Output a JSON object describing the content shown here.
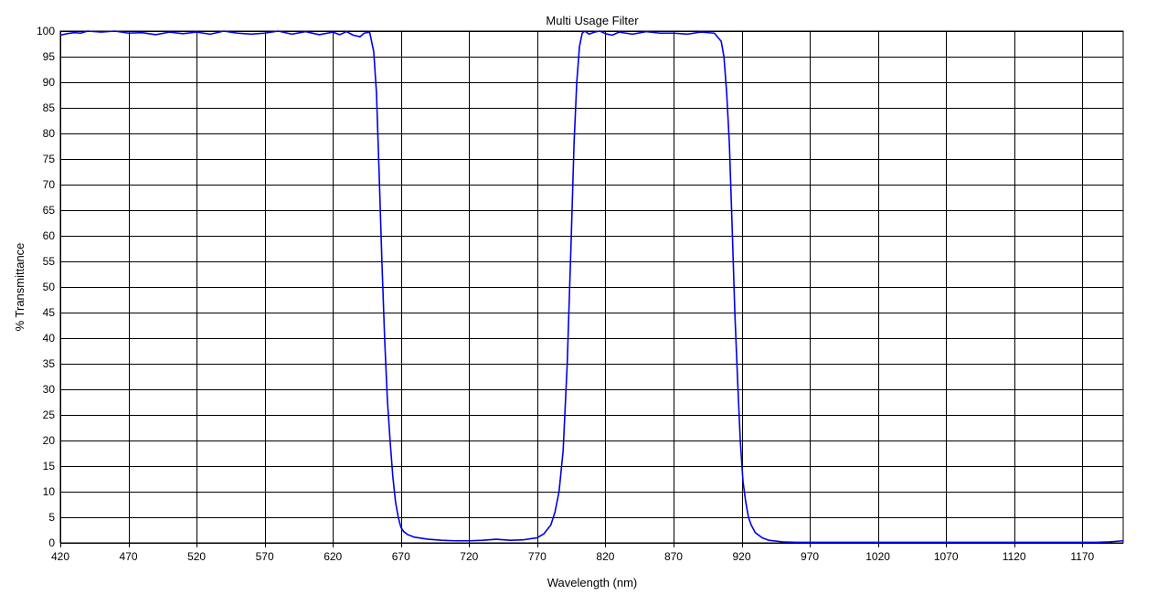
{
  "chart_data": {
    "type": "line",
    "title": "Multi Usage Filter",
    "xlabel": "Wavelength (nm)",
    "ylabel": "% Transmittance",
    "xlim": [
      420,
      1200
    ],
    "ylim": [
      0,
      100
    ],
    "xticks": [
      420,
      470,
      520,
      570,
      620,
      670,
      720,
      770,
      820,
      870,
      920,
      970,
      1020,
      1070,
      1120,
      1170
    ],
    "yticks": [
      0,
      5,
      10,
      15,
      20,
      25,
      30,
      35,
      40,
      45,
      50,
      55,
      60,
      65,
      70,
      75,
      80,
      85,
      90,
      95,
      100
    ],
    "grid": true,
    "line_color": "#0000e6",
    "series": [
      {
        "x": [
          420,
          425,
          430,
          435,
          440,
          450,
          460,
          470,
          480,
          490,
          500,
          510,
          520,
          530,
          540,
          550,
          560,
          570,
          580,
          590,
          600,
          610,
          620,
          625,
          630,
          635,
          640,
          643,
          647,
          650,
          652,
          654,
          656,
          658,
          660,
          662,
          664,
          666,
          668,
          670,
          672,
          675,
          680,
          690,
          700,
          710,
          720,
          730,
          740,
          750,
          760,
          770,
          775,
          780,
          783,
          786,
          789,
          792,
          795,
          797,
          799,
          801,
          803,
          805,
          808,
          812,
          816,
          820,
          825,
          830,
          840,
          850,
          860,
          870,
          880,
          890,
          900,
          905,
          907,
          909,
          911,
          913,
          915,
          917,
          919,
          921,
          923,
          925,
          927,
          930,
          935,
          940,
          950,
          960,
          970,
          1000,
          1050,
          1100,
          1150,
          1180,
          1190,
          1200
        ],
        "y": [
          99.2,
          99.5,
          99.7,
          99.6,
          100,
          99.8,
          100,
          99.6,
          99.7,
          99.3,
          99.8,
          99.5,
          99.8,
          99.4,
          100,
          99.6,
          99.4,
          99.6,
          100,
          99.4,
          99.9,
          99.3,
          99.8,
          99.3,
          99.9,
          99.2,
          98.9,
          99.6,
          99.8,
          96,
          88,
          72,
          55,
          40,
          28,
          20,
          13,
          8,
          5,
          3,
          2.2,
          1.6,
          1.1,
          0.7,
          0.5,
          0.4,
          0.4,
          0.5,
          0.7,
          0.5,
          0.6,
          1,
          1.8,
          3.5,
          6,
          10,
          18,
          35,
          60,
          78,
          90,
          97,
          99.6,
          100,
          99.4,
          99.8,
          100,
          99.5,
          99.2,
          99.8,
          99.4,
          99.9,
          99.6,
          99.6,
          99.4,
          99.8,
          99.6,
          98,
          95,
          88,
          78,
          62,
          45,
          32,
          20,
          12,
          8,
          5,
          3.5,
          2,
          1,
          0.5,
          0.2,
          0.1,
          0.1,
          0.1,
          0.1,
          0.1,
          0.1,
          0.1,
          0.2,
          0.4
        ]
      }
    ]
  }
}
